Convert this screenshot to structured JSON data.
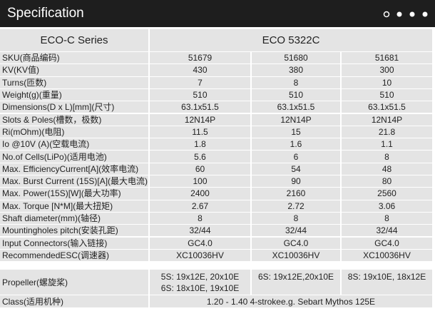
{
  "header": {
    "title": "Specification"
  },
  "table": {
    "series_label": "ECO-C Series",
    "model": "ECO 5322C",
    "rows": [
      {
        "label": "SKU(商品编码)",
        "values": [
          "51679",
          "51680",
          "51681"
        ]
      },
      {
        "label": "KV(KV值)",
        "values": [
          "430",
          "380",
          "300"
        ]
      },
      {
        "label": "Turns(匝数)",
        "values": [
          "7",
          "8",
          "10"
        ]
      },
      {
        "label": "Weight(g)(重量)",
        "values": [
          "510",
          "510",
          "510"
        ]
      },
      {
        "label": "Dimensions(D x L)[mm](尺寸)",
        "values": [
          "63.1x51.5",
          "63.1x51.5",
          "63.1x51.5"
        ]
      },
      {
        "label": "Slots & Poles(槽数，极数)",
        "values": [
          "12N14P",
          "12N14P",
          "12N14P"
        ]
      },
      {
        "label": "Ri(mOhm)(电阻)",
        "values": [
          "11.5",
          "15",
          "21.8"
        ]
      },
      {
        "label": "Io @10V (A)(空载电流)",
        "values": [
          "1.8",
          "1.6",
          "1.1"
        ]
      },
      {
        "label": "No.of Cells(LiPo)(适用电池)",
        "values": [
          "5.6",
          "6",
          "8"
        ]
      },
      {
        "label": "Max. EfficiencyCurrent[A](效率电流)",
        "values": [
          "60",
          "54",
          "48"
        ]
      },
      {
        "label": "Max. Burst Current (15S)[A](最大电流)",
        "values": [
          "100",
          "90",
          "80"
        ]
      },
      {
        "label": "Max. Power(15S)[W](最大功率)",
        "values": [
          "2400",
          "2160",
          "2560"
        ]
      },
      {
        "label": "Max. Torque [N*M](最大扭矩)",
        "values": [
          "2.67",
          "2.72",
          "3.06"
        ]
      },
      {
        "label": "Shaft diameter(mm)(轴径)",
        "values": [
          "8",
          "8",
          "8"
        ]
      },
      {
        "label": "Mountingholes pitch(安装孔距)",
        "values": [
          "32/44",
          "32/44",
          "32/44"
        ]
      },
      {
        "label": "Input Connectors(输入链接)",
        "values": [
          "GC4.0",
          "GC4.0",
          "GC4.0"
        ]
      },
      {
        "label": "RecommendedESC(调速器)",
        "values": [
          "XC10036HV",
          "XC10036HV",
          "XC10036HV"
        ]
      }
    ],
    "propeller": {
      "label": "Propeller(螺旋桨)",
      "values": [
        [
          "5S: 19x12E, 20x10E",
          "6S: 18x10E, 19x10E"
        ],
        [
          "6S: 19x12E,20x10E"
        ],
        [
          "8S: 19x10E, 18x12E"
        ]
      ]
    },
    "class": {
      "label": "Class(适用机种)",
      "value": "1.20 - 1.40 4-strokee.g. Sebart Mythos 125E"
    }
  }
}
